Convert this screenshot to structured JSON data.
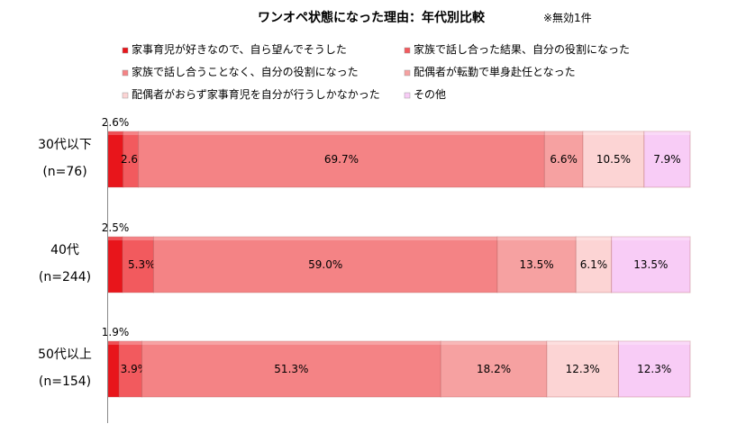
{
  "chart_data": {
    "type": "bar",
    "orientation": "horizontal",
    "stacked": true,
    "percent": true,
    "title": "ワンオペ状態になった理由：年代別比較",
    "note": "※無効1件",
    "xlim": [
      0,
      100
    ],
    "legend_position": "top",
    "categories": [
      [
        "30代以下",
        "(n=76)"
      ],
      [
        "40代",
        "(n=244)"
      ],
      [
        "50代以上",
        "(n=154)"
      ]
    ],
    "series": [
      {
        "name": "家事育児が好きなので、自ら望んでそうした",
        "color": "#e8151b",
        "values": [
          2.6,
          2.5,
          1.9
        ],
        "labels": [
          "2.6%",
          "2.5%",
          "1.9%"
        ]
      },
      {
        "name": "家族で話し合った結果、自分の役割になった",
        "color": "#f25a5e",
        "values": [
          2.6,
          5.3,
          3.9
        ],
        "labels": [
          "2.6%",
          "5.3%",
          "3.9%"
        ]
      },
      {
        "name": "家族で話し合うことなく、自分の役割になった",
        "color": "#f48385",
        "values": [
          69.7,
          59.0,
          51.3
        ],
        "labels": [
          "69.7%",
          "59.0%",
          "51.3%"
        ]
      },
      {
        "name": "配偶者が転勤で単身赴任となった",
        "color": "#f6a1a1",
        "values": [
          6.6,
          13.5,
          18.2
        ],
        "labels": [
          "6.6%",
          "13.5%",
          "18.2%"
        ]
      },
      {
        "name": "配偶者がおらず家事育児を自分が行うしかなかった",
        "color": "#fcd4d4",
        "values": [
          10.5,
          6.1,
          12.3
        ],
        "labels": [
          "10.5%",
          "6.1%",
          "12.3%"
        ]
      },
      {
        "name": "その他",
        "color": "#f8ccf6",
        "values": [
          7.9,
          13.5,
          12.3
        ],
        "labels": [
          "7.9%",
          "13.5%",
          "12.3%"
        ]
      }
    ]
  }
}
